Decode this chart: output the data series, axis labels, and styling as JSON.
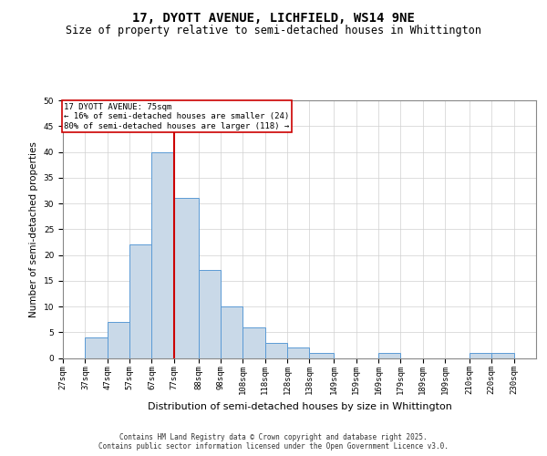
{
  "title_line1": "17, DYOTT AVENUE, LICHFIELD, WS14 9NE",
  "title_line2": "Size of property relative to semi-detached houses in Whittington",
  "xlabel": "Distribution of semi-detached houses by size in Whittington",
  "ylabel": "Number of semi-detached properties",
  "bin_labels": [
    "27sqm",
    "37sqm",
    "47sqm",
    "57sqm",
    "67sqm",
    "77sqm",
    "88sqm",
    "98sqm",
    "108sqm",
    "118sqm",
    "128sqm",
    "138sqm",
    "149sqm",
    "159sqm",
    "169sqm",
    "179sqm",
    "189sqm",
    "199sqm",
    "210sqm",
    "220sqm",
    "230sqm"
  ],
  "bin_edges": [
    27,
    37,
    47,
    57,
    67,
    77,
    88,
    98,
    108,
    118,
    128,
    138,
    149,
    159,
    169,
    179,
    189,
    199,
    210,
    220,
    230
  ],
  "bar_heights": [
    0,
    4,
    7,
    22,
    40,
    31,
    17,
    10,
    6,
    3,
    2,
    1,
    0,
    0,
    1,
    0,
    0,
    0,
    1,
    1,
    0
  ],
  "bar_color": "#c9d9e8",
  "bar_edge_color": "#5b9bd5",
  "vline_color": "#cc0000",
  "vline_x": 77,
  "annotation_text": "17 DYOTT AVENUE: 75sqm\n← 16% of semi-detached houses are smaller (24)\n80% of semi-detached houses are larger (118) →",
  "annotation_box_color": "#cc0000",
  "ylim": [
    0,
    50
  ],
  "yticks": [
    0,
    5,
    10,
    15,
    20,
    25,
    30,
    35,
    40,
    45,
    50
  ],
  "grid_color": "#d0d0d0",
  "background_color": "#ffffff",
  "footer_text": "Contains HM Land Registry data © Crown copyright and database right 2025.\nContains public sector information licensed under the Open Government Licence v3.0.",
  "title_fontsize": 10,
  "subtitle_fontsize": 8.5,
  "ylabel_fontsize": 7.5,
  "xlabel_fontsize": 8,
  "tick_fontsize": 6.5,
  "annot_fontsize": 6.5,
  "footer_fontsize": 5.5
}
